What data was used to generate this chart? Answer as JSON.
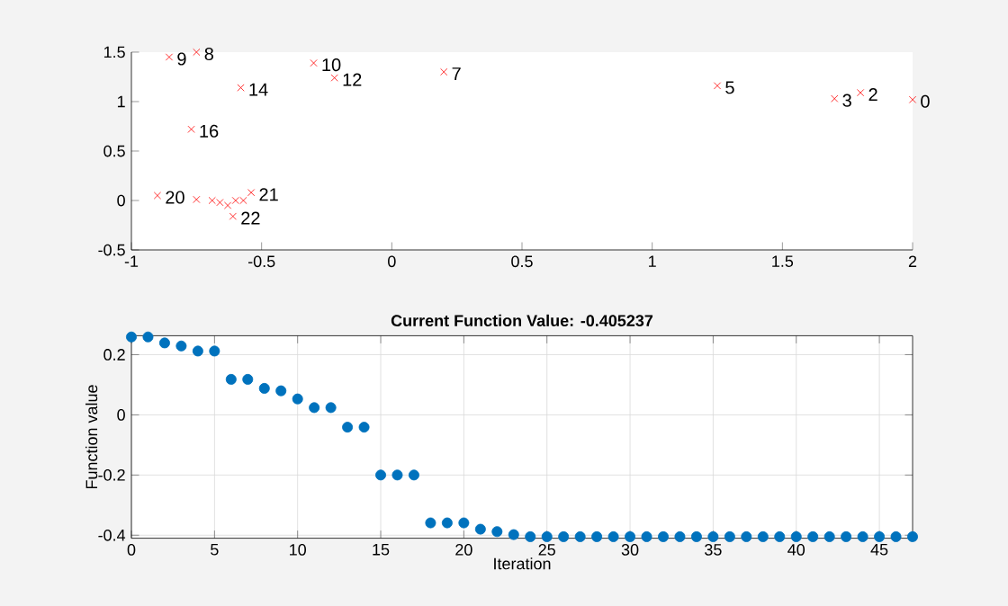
{
  "chart_data": [
    {
      "type": "scatter",
      "xlim": [
        -1,
        2
      ],
      "ylim": [
        -0.5,
        1.5
      ],
      "xticks": [
        -1,
        -0.5,
        0,
        0.5,
        1,
        1.5,
        2
      ],
      "yticks": [
        -0.5,
        0,
        0.5,
        1,
        1.5
      ],
      "grid": false,
      "marker": "cross",
      "series": [
        {
          "color": "#ff0000",
          "x": [
            2.0,
            1.8,
            1.7,
            1.25,
            0.2,
            -0.75,
            -0.855,
            -0.3,
            -0.22,
            -0.58,
            -0.77,
            -0.9,
            -0.54,
            -0.61,
            -0.75,
            -0.69,
            -0.66,
            -0.63,
            -0.6,
            -0.57
          ],
          "values": [
            1.02,
            1.09,
            1.03,
            1.16,
            1.3,
            1.5,
            1.45,
            1.39,
            1.24,
            1.14,
            0.72,
            0.05,
            0.08,
            -0.16,
            0.01,
            0.0,
            -0.02,
            -0.05,
            0.0,
            0.0
          ]
        }
      ],
      "annotations": [
        {
          "text": "0",
          "x": 2.0,
          "y": 1.02
        },
        {
          "text": "2",
          "x": 1.8,
          "y": 1.09
        },
        {
          "text": "3",
          "x": 1.7,
          "y": 1.03
        },
        {
          "text": "5",
          "x": 1.25,
          "y": 1.16
        },
        {
          "text": "7",
          "x": 0.2,
          "y": 1.3
        },
        {
          "text": "8",
          "x": -0.75,
          "y": 1.5
        },
        {
          "text": "9",
          "x": -0.855,
          "y": 1.45
        },
        {
          "text": "10",
          "x": -0.3,
          "y": 1.39
        },
        {
          "text": "12",
          "x": -0.22,
          "y": 1.24
        },
        {
          "text": "14",
          "x": -0.58,
          "y": 1.14
        },
        {
          "text": "16",
          "x": -0.77,
          "y": 0.72
        },
        {
          "text": "20",
          "x": -0.9,
          "y": 0.05
        },
        {
          "text": "21",
          "x": -0.54,
          "y": 0.08
        },
        {
          "text": "22",
          "x": -0.61,
          "y": -0.16
        }
      ]
    },
    {
      "type": "scatter",
      "title": "Current Function Value: -0.405237",
      "xlabel": "Iteration",
      "ylabel": "Function value",
      "xlim": [
        0,
        47
      ],
      "ylim": [
        -0.41,
        0.263
      ],
      "xticks": [
        0,
        5,
        10,
        15,
        20,
        25,
        30,
        35,
        40,
        45
      ],
      "yticks": [
        -0.4,
        -0.2,
        0,
        0.2
      ],
      "grid": true,
      "marker": "circle",
      "series": [
        {
          "color": "#0072bd",
          "x": [
            0,
            1,
            2,
            3,
            4,
            5,
            6,
            7,
            8,
            9,
            10,
            11,
            12,
            13,
            14,
            15,
            16,
            17,
            18,
            19,
            20,
            21,
            22,
            23,
            24,
            25,
            26,
            27,
            28,
            29,
            30,
            31,
            32,
            33,
            34,
            35,
            36,
            37,
            38,
            39,
            40,
            41,
            42,
            43,
            44,
            45,
            46,
            47
          ],
          "values": [
            0.259,
            0.259,
            0.239,
            0.229,
            0.212,
            0.212,
            0.118,
            0.118,
            0.088,
            0.08,
            0.053,
            0.024,
            0.024,
            -0.041,
            -0.041,
            -0.2,
            -0.2,
            -0.2,
            -0.359,
            -0.359,
            -0.359,
            -0.38,
            -0.388,
            -0.398,
            -0.405,
            -0.405,
            -0.405,
            -0.405,
            -0.405,
            -0.405,
            -0.405,
            -0.405,
            -0.405,
            -0.405,
            -0.405,
            -0.405,
            -0.405,
            -0.405,
            -0.405,
            -0.405,
            -0.405,
            -0.405,
            -0.405,
            -0.405,
            -0.405,
            -0.405,
            -0.405,
            -0.405
          ]
        }
      ]
    }
  ]
}
